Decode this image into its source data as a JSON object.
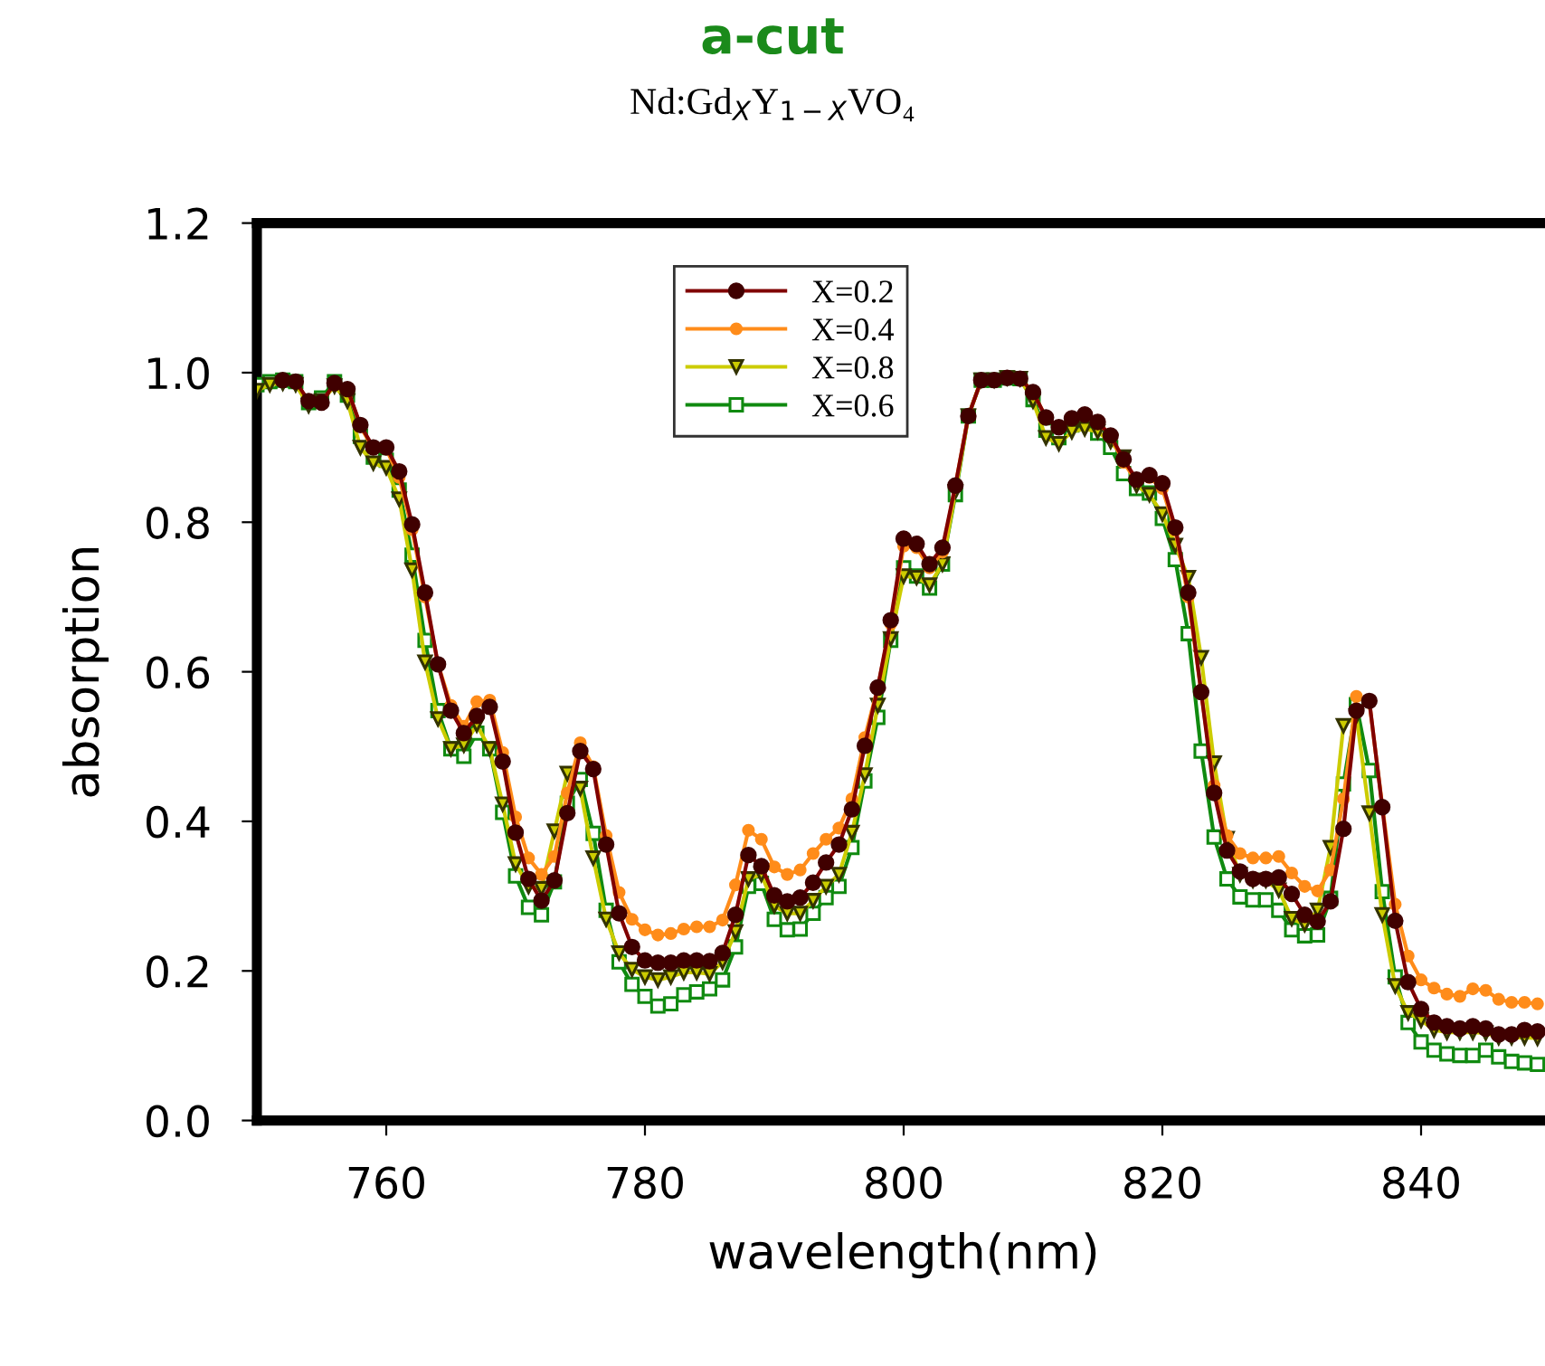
{
  "chart_data": {
    "type": "line",
    "title": "a-cut",
    "subtitle": "Nd:Gd$_{X}$Y$_{1−X}$VO₄",
    "xlabel": "wavelength(nm)",
    "ylabel": "absorption",
    "x": [
      750,
      751,
      752,
      753,
      754,
      755,
      756,
      757,
      758,
      759,
      760,
      761,
      762,
      763,
      764,
      765,
      766,
      767,
      768,
      769,
      770,
      771,
      772,
      773,
      774,
      775,
      776,
      777,
      778,
      779,
      780,
      781,
      782,
      783,
      784,
      785,
      786,
      787,
      788,
      789,
      790,
      791,
      792,
      793,
      794,
      795,
      796,
      797,
      798,
      799,
      800,
      801,
      802,
      803,
      804,
      805,
      806,
      807,
      808,
      809,
      810,
      811,
      812,
      813,
      814,
      815,
      816,
      817,
      818,
      819,
      820,
      821,
      822,
      823,
      824,
      825,
      826,
      827,
      828,
      829,
      830,
      831,
      832,
      833,
      834,
      835,
      836,
      837,
      838,
      839,
      840,
      841,
      842,
      843,
      844,
      845,
      846,
      847,
      848,
      849
    ],
    "series": [
      {
        "name": "X=0.2",
        "color": "#800000",
        "marker": "circle",
        "values": [
          null,
          null,
          0.99,
          0.988,
          0.962,
          0.96,
          0.986,
          0.978,
          0.93,
          0.9,
          0.9,
          0.868,
          0.797,
          0.706,
          0.61,
          0.548,
          0.518,
          0.541,
          0.553,
          0.48,
          0.385,
          0.323,
          0.294,
          0.321,
          0.411,
          0.494,
          0.47,
          0.369,
          0.277,
          0.232,
          0.214,
          0.211,
          0.211,
          0.214,
          0.214,
          0.213,
          0.224,
          0.275,
          0.355,
          0.34,
          0.301,
          0.293,
          0.298,
          0.318,
          0.345,
          0.369,
          0.416,
          0.501,
          0.579,
          0.669,
          0.778,
          0.771,
          0.744,
          0.766,
          0.849,
          0.942,
          0.99,
          0.99,
          0.993,
          0.992,
          0.974,
          0.94,
          0.927,
          0.939,
          0.944,
          0.934,
          0.916,
          0.884,
          0.857,
          0.863,
          0.852,
          0.793,
          0.706,
          0.573,
          0.438,
          0.361,
          0.333,
          0.323,
          0.323,
          0.325,
          0.303,
          0.275,
          0.266,
          0.293,
          0.39,
          0.548,
          0.561,
          0.419,
          0.267,
          0.185,
          0.149,
          0.131,
          0.126,
          0.123,
          0.126,
          0.123,
          0.115,
          0.115,
          0.121,
          0.119
        ]
      },
      {
        "name": "X=0.4",
        "color": "#ff8c1a",
        "marker": "circle",
        "values": [
          null,
          null,
          null,
          null,
          null,
          null,
          null,
          0.978,
          0.928,
          0.898,
          0.898,
          0.86,
          0.79,
          0.7,
          0.61,
          0.555,
          0.527,
          0.56,
          0.562,
          0.492,
          0.406,
          0.351,
          0.329,
          0.353,
          0.438,
          0.505,
          0.473,
          0.381,
          0.305,
          0.269,
          0.255,
          0.248,
          0.25,
          0.256,
          0.259,
          0.259,
          0.268,
          0.315,
          0.388,
          0.376,
          0.339,
          0.329,
          0.335,
          0.357,
          0.376,
          0.391,
          0.43,
          0.512,
          0.579,
          0.664,
          0.768,
          0.766,
          0.739,
          0.76,
          0.849,
          0.942,
          0.99,
          0.99,
          0.993,
          0.992,
          0.974,
          0.94,
          0.927,
          0.939,
          0.944,
          0.934,
          0.916,
          0.88,
          0.855,
          0.86,
          0.845,
          0.789,
          0.7,
          0.573,
          0.448,
          0.381,
          0.357,
          0.351,
          0.351,
          0.353,
          0.331,
          0.313,
          0.307,
          0.335,
          0.43,
          0.567,
          0.559,
          0.421,
          0.289,
          0.22,
          0.188,
          0.177,
          0.169,
          0.166,
          0.176,
          0.174,
          0.162,
          0.158,
          0.158,
          0.156
        ]
      },
      {
        "name": "X=0.8",
        "color": "#cccc00",
        "marker": "triangle",
        "values": [
          0.976,
          0.984,
          0.986,
          0.984,
          0.956,
          0.962,
          0.982,
          0.962,
          0.9,
          0.879,
          0.873,
          0.831,
          0.736,
          0.613,
          0.537,
          0.497,
          0.502,
          0.529,
          0.497,
          0.423,
          0.343,
          0.313,
          0.31,
          0.387,
          0.464,
          0.444,
          0.351,
          0.269,
          0.224,
          0.202,
          0.192,
          0.188,
          0.192,
          0.198,
          0.198,
          0.196,
          0.212,
          0.252,
          0.323,
          0.329,
          0.287,
          0.277,
          0.277,
          0.294,
          0.313,
          0.329,
          0.385,
          0.462,
          0.555,
          0.644,
          0.728,
          0.726,
          0.716,
          0.744,
          0.841,
          0.942,
          0.99,
          0.99,
          0.993,
          0.992,
          0.962,
          0.913,
          0.905,
          0.921,
          0.925,
          0.921,
          0.908,
          0.887,
          0.849,
          0.837,
          0.811,
          0.769,
          0.726,
          0.619,
          0.478,
          0.377,
          0.329,
          0.321,
          0.321,
          0.308,
          0.27,
          0.262,
          0.281,
          0.365,
          0.528,
          0.541,
          0.411,
          0.275,
          0.18,
          0.144,
          0.134,
          0.121,
          0.118,
          0.118,
          0.118,
          0.117,
          0.111,
          0.111,
          0.111,
          0.11
        ]
      },
      {
        "name": "X=0.6",
        "color": "#108a10",
        "marker": "square",
        "values": [
          0.984,
          0.988,
          0.99,
          0.988,
          0.96,
          0.966,
          0.988,
          0.97,
          0.915,
          0.887,
          0.883,
          0.843,
          0.756,
          0.642,
          0.548,
          0.497,
          0.487,
          0.518,
          0.497,
          0.412,
          0.327,
          0.285,
          0.275,
          0.319,
          0.424,
          0.456,
          0.384,
          0.281,
          0.212,
          0.182,
          0.166,
          0.153,
          0.156,
          0.168,
          0.172,
          0.176,
          0.188,
          0.232,
          0.313,
          0.317,
          0.269,
          0.255,
          0.256,
          0.277,
          0.298,
          0.313,
          0.365,
          0.454,
          0.539,
          0.642,
          0.739,
          0.728,
          0.712,
          0.744,
          0.837,
          0.942,
          0.99,
          0.99,
          0.993,
          0.992,
          0.964,
          0.923,
          0.913,
          0.93,
          0.932,
          0.919,
          0.9,
          0.865,
          0.845,
          0.839,
          0.805,
          0.75,
          0.651,
          0.494,
          0.379,
          0.323,
          0.299,
          0.295,
          0.295,
          0.281,
          0.255,
          0.247,
          0.248,
          0.297,
          0.45,
          0.556,
          0.468,
          0.306,
          0.192,
          0.131,
          0.105,
          0.094,
          0.089,
          0.087,
          0.087,
          0.094,
          0.085,
          0.079,
          0.077,
          0.075
        ]
      }
    ],
    "xlim": [
      750,
      850
    ],
    "xticks": [
      760,
      780,
      800,
      820,
      840
    ],
    "ylim": [
      0,
      1.2
    ],
    "yticks": [
      {
        "value": 0,
        "label": "0.0"
      },
      {
        "value": 0.2,
        "label": "0.2"
      },
      {
        "value": 0.4,
        "label": "0.4"
      },
      {
        "value": 0.6,
        "label": "0.6"
      },
      {
        "value": 0.8,
        "label": "0.8"
      },
      {
        "value": 1.0,
        "label": "1.0"
      },
      {
        "value": 1.2,
        "label": "1.2"
      }
    ],
    "grid": false,
    "legend": "top",
    "line_style": "solid"
  }
}
